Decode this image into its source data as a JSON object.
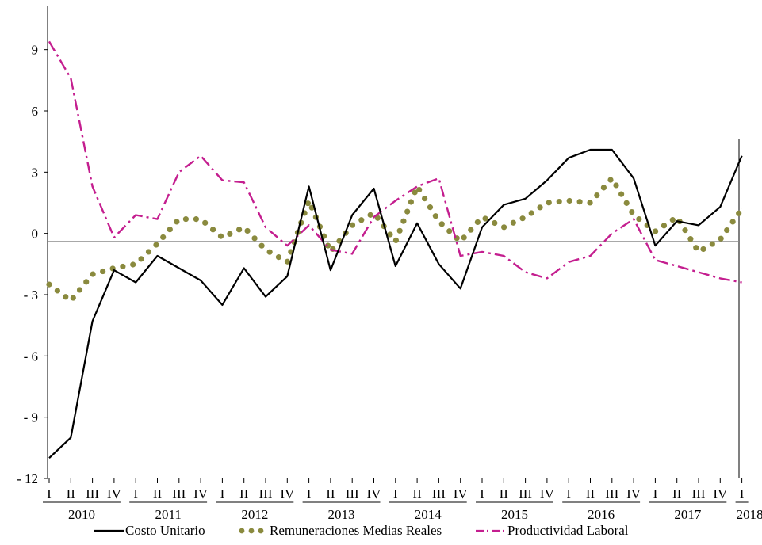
{
  "chart_data": {
    "type": "line",
    "title": "",
    "xlabel": "",
    "ylabel": "",
    "ylim": [
      -12,
      10.5
    ],
    "y_ticks": [
      9,
      6,
      3,
      0,
      -3,
      -6,
      -9,
      -12
    ],
    "y_tick_labels": [
      "9",
      "6",
      "3",
      "0",
      "- 3",
      "- 6",
      "- 9",
      "- 12"
    ],
    "quarters": [
      "I",
      "II",
      "III",
      "IV",
      "I",
      "II",
      "III",
      "IV",
      "I",
      "II",
      "III",
      "IV",
      "I",
      "II",
      "III",
      "IV",
      "I",
      "II",
      "III",
      "IV",
      "I",
      "II",
      "III",
      "IV",
      "I",
      "II",
      "III",
      "IV",
      "I",
      "II",
      "III",
      "IV",
      "I"
    ],
    "years": [
      "2010",
      "2011",
      "2012",
      "2013",
      "2014",
      "2015",
      "2016",
      "2017",
      "2018"
    ],
    "reference_line": -0.4,
    "series": [
      {
        "name": "Costo Unitario",
        "color": "#000000",
        "style": "solid",
        "values": [
          -11.0,
          -10.0,
          -4.3,
          -1.8,
          -2.4,
          -1.1,
          -1.7,
          -2.3,
          -3.5,
          -1.7,
          -3.1,
          -2.1,
          2.3,
          -1.8,
          0.9,
          2.2,
          -1.6,
          0.5,
          -1.5,
          -2.7,
          0.3,
          1.4,
          1.7,
          2.6,
          3.7,
          4.1,
          4.1,
          2.7,
          -0.6,
          0.6,
          0.4,
          1.3,
          3.8
        ]
      },
      {
        "name": "Remuneraciones Medias Reales",
        "color": "#8a8a3e",
        "style": "dotted",
        "values": [
          -2.5,
          -3.3,
          -2.0,
          -1.7,
          -1.5,
          -0.5,
          0.7,
          0.7,
          -0.2,
          0.3,
          -0.8,
          -1.4,
          1.6,
          -0.9,
          0.4,
          1.0,
          -0.4,
          2.3,
          0.6,
          -0.4,
          0.8,
          0.3,
          0.8,
          1.5,
          1.6,
          1.5,
          2.7,
          0.9,
          0.1,
          0.8,
          -0.9,
          -0.3,
          1.2
        ]
      },
      {
        "name": "Productividad Laboral",
        "color": "#c41e8f",
        "style": "dashdot",
        "values": [
          9.4,
          7.6,
          2.3,
          -0.2,
          0.9,
          0.7,
          3.0,
          3.8,
          2.6,
          2.5,
          0.3,
          -0.6,
          0.4,
          -0.8,
          -1.0,
          0.8,
          1.6,
          2.3,
          2.7,
          -1.1,
          -0.9,
          -1.1,
          -1.9,
          -2.2,
          -1.4,
          -1.1,
          0.0,
          0.7,
          -1.3,
          -1.6,
          -1.9,
          -2.2,
          -2.4
        ]
      }
    ],
    "legend_position": "bottom",
    "grid": false
  }
}
